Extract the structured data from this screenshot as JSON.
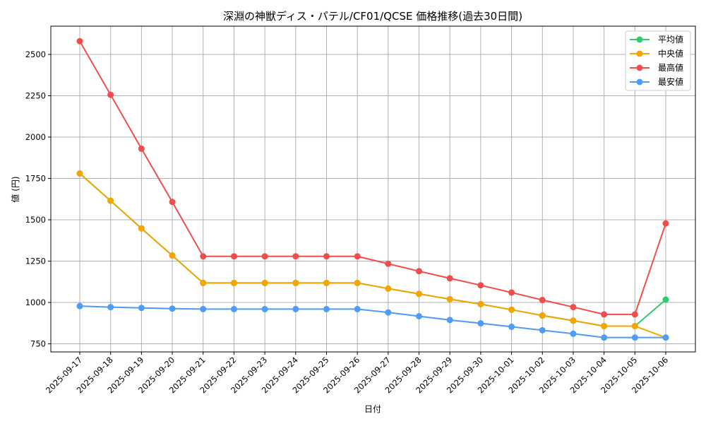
{
  "chart_data": {
    "type": "line",
    "title": "深淵の神獣ディス・パテル/CF01/QCSE 価格推移(過去30日間)",
    "xlabel": "日付",
    "ylabel": "値 (円)",
    "ylim": [
      701,
      2671
    ],
    "yticks": [
      750,
      1000,
      1250,
      1500,
      1750,
      2000,
      2250,
      2500
    ],
    "grid": true,
    "legend_position": "upper right",
    "categories": [
      "2025-09-17",
      "2025-09-18",
      "2025-09-19",
      "2025-09-20",
      "2025-09-21",
      "2025-09-22",
      "2025-09-23",
      "2025-09-24",
      "2025-09-25",
      "2025-09-26",
      "2025-09-27",
      "2025-09-28",
      "2025-09-29",
      "2025-09-30",
      "2025-10-01",
      "2025-10-02",
      "2025-10-03",
      "2025-10-04",
      "2025-10-05",
      "2025-10-06"
    ],
    "series": [
      {
        "name": "平均値",
        "color": "#2ecc71",
        "values": [
          1780,
          1615,
          1448,
          1284,
          1118,
          1118,
          1118,
          1118,
          1118,
          1118,
          1084,
          1052,
          1020,
          990,
          956,
          921,
          890,
          857,
          857,
          1017
        ]
      },
      {
        "name": "中央値",
        "color": "#f5a500",
        "values": [
          1780,
          1615,
          1448,
          1284,
          1118,
          1118,
          1118,
          1118,
          1118,
          1118,
          1084,
          1052,
          1020,
          990,
          956,
          921,
          890,
          857,
          857,
          788
        ]
      },
      {
        "name": "最高値",
        "color": "#f04d4d",
        "values": [
          2580,
          2256,
          1930,
          1608,
          1279,
          1279,
          1279,
          1279,
          1279,
          1279,
          1234,
          1189,
          1146,
          1104,
          1060,
          1015,
          972,
          928,
          928,
          1478
        ]
      },
      {
        "name": "最安値",
        "color": "#4d9cf5",
        "values": [
          978,
          972,
          967,
          963,
          960,
          960,
          960,
          960,
          960,
          960,
          940,
          917,
          894,
          874,
          853,
          832,
          811,
          788,
          788,
          788
        ]
      }
    ]
  },
  "colors": {
    "grid": "#b0b0b0",
    "axis": "#000000",
    "legend_border": "#cccccc"
  }
}
